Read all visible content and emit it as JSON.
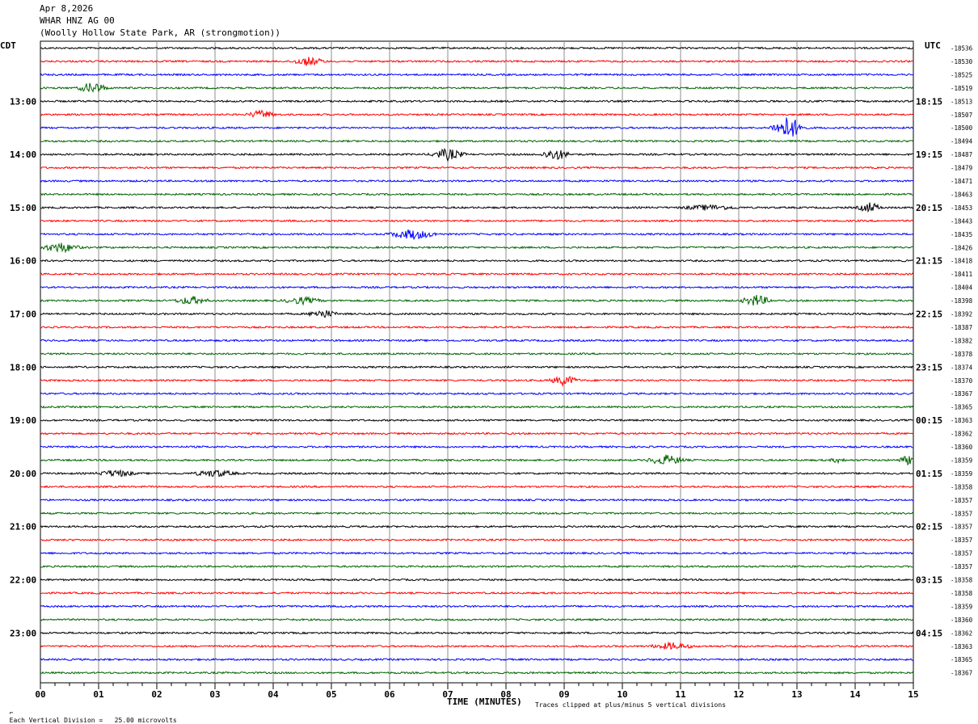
{
  "header": {
    "date": "Apr 8,2026",
    "station": "WHAR HNZ AG 00",
    "location": "(Woolly Hollow State Park, AR (strongmotion))"
  },
  "left_tz": "CDT",
  "right_tz": "UTC",
  "footer": {
    "scale_note": "Each Vertical Division =   25.00 microvolts",
    "xlabel": "TIME (MINUTES)",
    "clip_note": "Traces clipped at plus/minus 5 vertical divisions"
  },
  "colors": {
    "trace_cycle": [
      "#000000",
      "#ff0000",
      "#0000ff",
      "#006400"
    ],
    "grid": "#8c8c8c"
  },
  "chart_data": {
    "type": "line",
    "title": "WHAR HNZ AG 00",
    "xlabel": "TIME (MINUTES)",
    "xlim": [
      0,
      15
    ],
    "x_ticks": [
      "00",
      "01",
      "02",
      "03",
      "04",
      "05",
      "06",
      "07",
      "08",
      "09",
      "10",
      "11",
      "12",
      "13",
      "14",
      "15"
    ],
    "left_hour_labels": [
      {
        "row": 4,
        "label": "13:00"
      },
      {
        "row": 8,
        "label": "14:00"
      },
      {
        "row": 12,
        "label": "15:00"
      },
      {
        "row": 16,
        "label": "16:00"
      },
      {
        "row": 20,
        "label": "17:00"
      },
      {
        "row": 24,
        "label": "18:00"
      },
      {
        "row": 28,
        "label": "19:00"
      },
      {
        "row": 32,
        "label": "20:00"
      },
      {
        "row": 36,
        "label": "21:00"
      },
      {
        "row": 40,
        "label": "22:00"
      },
      {
        "row": 44,
        "label": "23:00"
      }
    ],
    "right_hour_labels": [
      {
        "row": 4,
        "label": "18:15"
      },
      {
        "row": 8,
        "label": "19:15"
      },
      {
        "row": 12,
        "label": "20:15"
      },
      {
        "row": 16,
        "label": "21:15"
      },
      {
        "row": 20,
        "label": "22:15"
      },
      {
        "row": 24,
        "label": "23:15"
      },
      {
        "row": 28,
        "label": "00:15"
      },
      {
        "row": 32,
        "label": "01:15"
      },
      {
        "row": 36,
        "label": "02:15"
      },
      {
        "row": 40,
        "label": "03:15"
      },
      {
        "row": 44,
        "label": "04:15"
      }
    ],
    "trace_offsets": [
      "-18536",
      "-18530",
      "-18525",
      "-18519",
      "-18513",
      "-18507",
      "-18500",
      "-18494",
      "-18487",
      "-18479",
      "-18471",
      "-18463",
      "-18453",
      "-18443",
      "-18435",
      "-18426",
      "-18418",
      "-18411",
      "-18404",
      "-18398",
      "-18392",
      "-18387",
      "-18382",
      "-18378",
      "-18374",
      "-18370",
      "-18367",
      "-18365",
      "-18363",
      "-18362",
      "-18360",
      "-18359",
      "-18359",
      "-18358",
      "-18357",
      "-18357",
      "-18357",
      "-18357",
      "-18357",
      "-18357",
      "-18358",
      "-18358",
      "-18359",
      "-18360",
      "-18362",
      "-18363",
      "-18365",
      "-18367"
    ],
    "events": [
      {
        "row": 1,
        "minute": 4.6,
        "amp": 5,
        "dur": 0.35
      },
      {
        "row": 3,
        "minute": 0.9,
        "amp": 7,
        "dur": 0.3
      },
      {
        "row": 5,
        "minute": 3.8,
        "amp": 5,
        "dur": 0.3
      },
      {
        "row": 6,
        "minute": 12.85,
        "amp": 14,
        "dur": 0.35
      },
      {
        "row": 8,
        "minute": 7.0,
        "amp": 7,
        "dur": 0.35
      },
      {
        "row": 8,
        "minute": 8.85,
        "amp": 7,
        "dur": 0.3
      },
      {
        "row": 12,
        "minute": 11.5,
        "amp": 3,
        "dur": 0.6
      },
      {
        "row": 12,
        "minute": 14.25,
        "amp": 6,
        "dur": 0.25
      },
      {
        "row": 14,
        "minute": 6.4,
        "amp": 6,
        "dur": 0.5
      },
      {
        "row": 15,
        "minute": 0.35,
        "amp": 6,
        "dur": 0.4
      },
      {
        "row": 19,
        "minute": 2.6,
        "amp": 5,
        "dur": 0.35
      },
      {
        "row": 19,
        "minute": 4.5,
        "amp": 4,
        "dur": 0.4
      },
      {
        "row": 19,
        "minute": 12.3,
        "amp": 7,
        "dur": 0.3
      },
      {
        "row": 20,
        "minute": 4.85,
        "amp": 5,
        "dur": 0.3
      },
      {
        "row": 25,
        "minute": 9.0,
        "amp": 6,
        "dur": 0.3
      },
      {
        "row": 31,
        "minute": 10.75,
        "amp": 6,
        "dur": 0.4
      },
      {
        "row": 31,
        "minute": 13.7,
        "amp": 3,
        "dur": 0.15
      },
      {
        "row": 31,
        "minute": 14.9,
        "amp": 5,
        "dur": 0.2
      },
      {
        "row": 32,
        "minute": 1.3,
        "amp": 4,
        "dur": 0.4
      },
      {
        "row": 32,
        "minute": 3.0,
        "amp": 4,
        "dur": 0.45
      },
      {
        "row": 45,
        "minute": 10.85,
        "amp": 4,
        "dur": 0.45
      }
    ]
  }
}
